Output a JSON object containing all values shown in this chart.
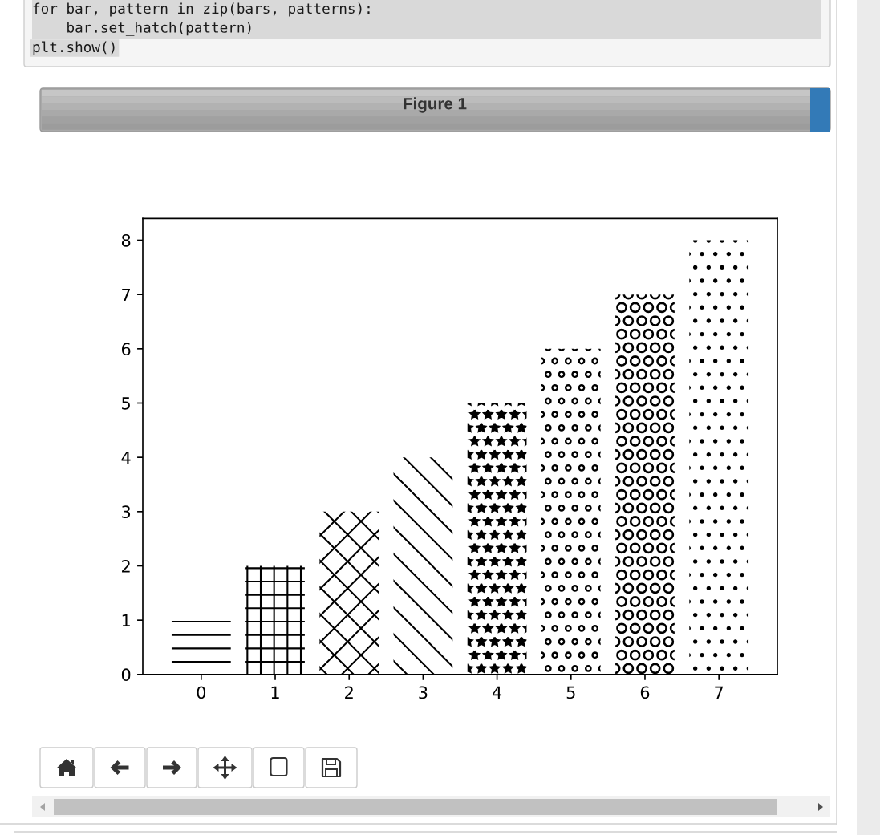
{
  "chart_data": {
    "type": "bar",
    "title": "Figure 1",
    "annotations": [
      "for bar, pattern in zip(bars, patterns):",
      "    bar.set_hatch(pattern)",
      "plt.show()"
    ],
    "categories": [
      "0",
      "1",
      "2",
      "3",
      "4",
      "5",
      "6",
      "7"
    ],
    "values": [
      1,
      2,
      3,
      4,
      5,
      6,
      7,
      8
    ],
    "color": "#000000",
    "ylim": [
      0,
      8.4
    ],
    "yticks": [
      0,
      1,
      2,
      3,
      4,
      5,
      6,
      7,
      8
    ],
    "grid": false
  }
}
